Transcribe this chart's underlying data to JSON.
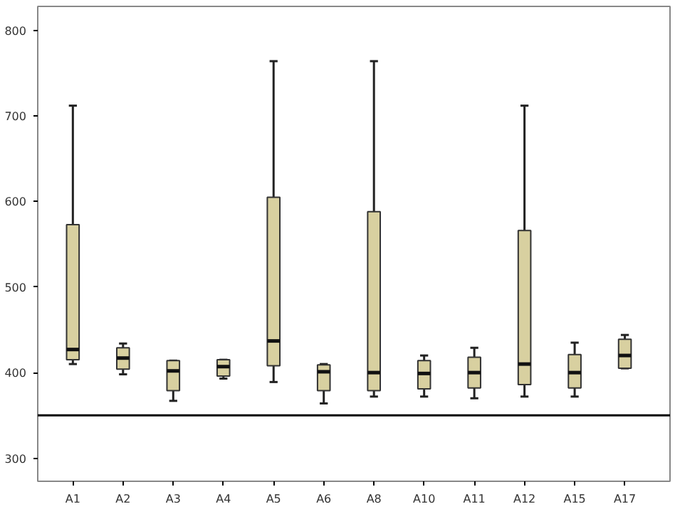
{
  "chart_data": {
    "type": "box",
    "categories": [
      "A1",
      "A2",
      "A3",
      "A4",
      "A5",
      "A6",
      "A8",
      "A10",
      "A11",
      "A12",
      "A15",
      "A17"
    ],
    "series": [
      {
        "color": "#d8d0a0",
        "boxes": [
          {
            "low": 410,
            "q1": 415,
            "median": 427,
            "q3": 573,
            "high": 712
          },
          {
            "low": 398,
            "q1": 404,
            "median": 417,
            "q3": 429,
            "high": 434
          },
          {
            "low": 367,
            "q1": 379,
            "median": 402,
            "q3": 414,
            "high": 414
          },
          {
            "low": 393,
            "q1": 396,
            "median": 407,
            "q3": 415,
            "high": 415
          },
          {
            "low": 389,
            "q1": 408,
            "median": 437,
            "q3": 605,
            "high": 764
          },
          {
            "low": 364,
            "q1": 379,
            "median": 401,
            "q3": 409,
            "high": 410
          },
          {
            "low": 372,
            "q1": 379,
            "median": 400,
            "q3": 588,
            "high": 764
          },
          {
            "low": 372,
            "q1": 381,
            "median": 399,
            "q3": 414,
            "high": 420
          },
          {
            "low": 370,
            "q1": 382,
            "median": 400,
            "q3": 418,
            "high": 429
          },
          {
            "low": 372,
            "q1": 386,
            "median": 410,
            "q3": 566,
            "high": 712
          },
          {
            "low": 372,
            "q1": 382,
            "median": 400,
            "q3": 421,
            "high": 435
          },
          {
            "low": 405,
            "q1": 405,
            "median": 420,
            "q3": 439,
            "high": 444
          }
        ]
      }
    ],
    "ylim": [
      273,
      828
    ],
    "yticks": [
      300,
      400,
      500,
      600,
      700,
      800
    ],
    "ref_lines": [
      {
        "axis": "y",
        "value": 350,
        "color": "#000000"
      }
    ],
    "grid": false
  }
}
